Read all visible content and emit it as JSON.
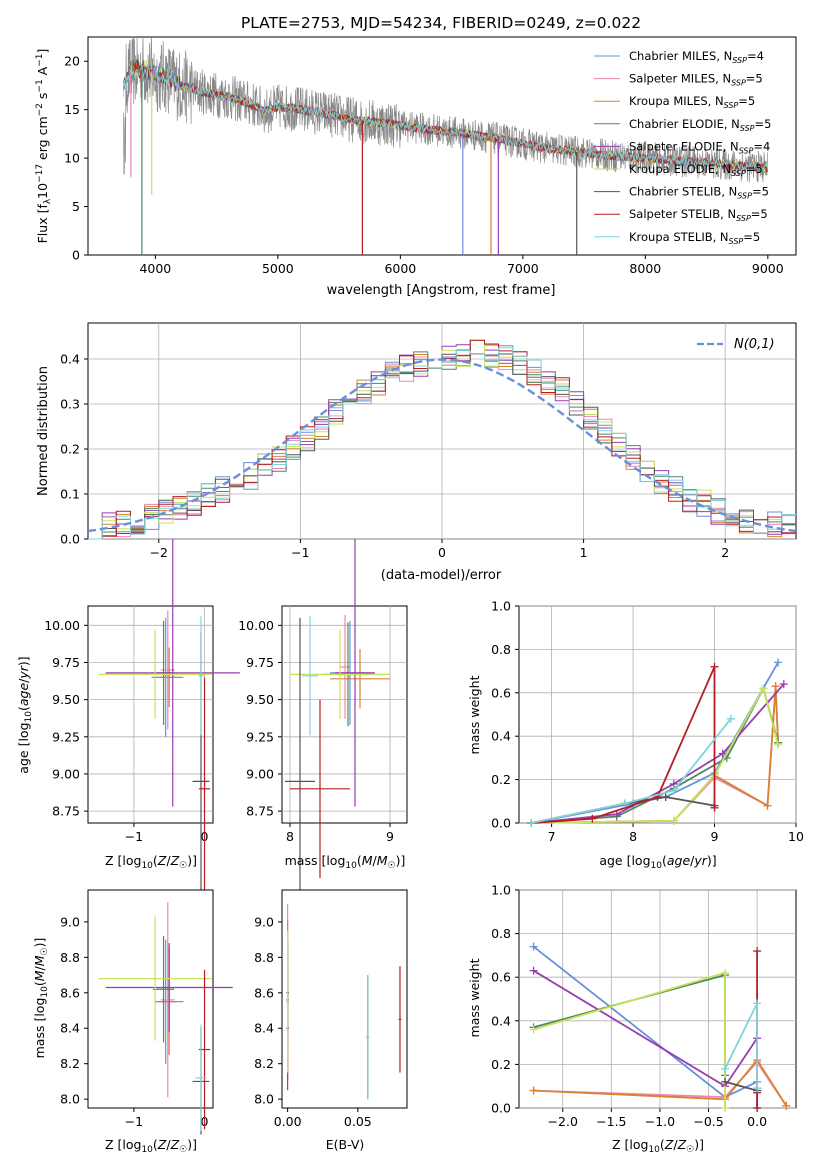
{
  "title": "PLATE=2753, MJD=54234, FIBERID=0249, z=0.022",
  "model_colors": [
    "#6a8fdc",
    "#ef84b2",
    "#d78431",
    "#4a8a61",
    "#9a3bb2",
    "#c7e35c",
    "#555555",
    "#b51d23",
    "#7fd5db"
  ],
  "chart_data": [
    {
      "id": "spectrum",
      "type": "line",
      "xlabel": "wavelength [Angstrom, rest frame]",
      "ylabel": "Flux [f_λ10^-17 erg cm^-2 s^-1 A^-1]",
      "xlim": [
        3450,
        9230
      ],
      "ylim": [
        0,
        22.5
      ],
      "xticks": [
        "4000",
        "5000",
        "6000",
        "7000",
        "8000",
        "9000"
      ],
      "yticks": [
        "0",
        "5",
        "10",
        "15",
        "20"
      ],
      "grid": false,
      "legend_position": "top-right",
      "legend": [
        {
          "label": "Chabrier MILES, N",
          "sub": "SSP",
          "value": "=4"
        },
        {
          "label": "Salpeter MILES, N",
          "sub": "SSP",
          "value": "=5"
        },
        {
          "label": "Kroupa MILES, N",
          "sub": "SSP",
          "value": "=5"
        },
        {
          "label": "Chabrier ELODIE, N",
          "sub": "SSP",
          "value": "=5"
        },
        {
          "label": "Salpeter ELODIE, N",
          "sub": "SSP",
          "value": "=4"
        },
        {
          "label": "Kroupa ELODIE, N",
          "sub": "SSP",
          "value": "=5"
        },
        {
          "label": "Chabrier STELIB, N",
          "sub": "SSP",
          "value": "=5"
        },
        {
          "label": "Salpeter STELIB, N",
          "sub": "SSP",
          "value": "=5"
        },
        {
          "label": "Kroupa STELIB, N",
          "sub": "SSP",
          "value": "=5"
        }
      ],
      "data_continuum": {
        "wavelength": [
          3740,
          3800,
          3900,
          4000,
          4100,
          4200,
          4400,
          4600,
          4800,
          4900,
          5000,
          5200,
          5400,
          5600,
          5800,
          6000,
          6200,
          6400,
          6600,
          6800,
          7000,
          7200,
          7400,
          7600,
          7800,
          8000,
          8200,
          8400,
          8600,
          8800,
          9000
        ],
        "flux": [
          17.5,
          19.0,
          19.2,
          18.5,
          18.3,
          17.5,
          16.8,
          16.3,
          15.5,
          14.8,
          15.3,
          15.0,
          14.6,
          14.0,
          13.7,
          13.4,
          13.0,
          12.7,
          12.4,
          12.0,
          11.5,
          11.0,
          10.7,
          10.4,
          10.2,
          10.0,
          9.8,
          9.6,
          9.4,
          9.2,
          9.0
        ]
      },
      "noise_amplitude": 2.4,
      "dips": [
        {
          "wavelength": 3800,
          "flux": 8.0
        },
        {
          "wavelength": 3890,
          "flux": 0
        },
        {
          "wavelength": 3970,
          "flux": 6.2
        },
        {
          "wavelength": 5690,
          "flux": 0
        },
        {
          "wavelength": 6510,
          "flux": 0
        },
        {
          "wavelength": 6740,
          "flux": 0
        },
        {
          "wavelength": 6800,
          "flux": 0
        },
        {
          "wavelength": 7440,
          "flux": 0
        }
      ]
    },
    {
      "id": "residuals",
      "type": "histogram",
      "xlabel": "(data-model)/error",
      "ylabel": "Normed distribution",
      "xlim": [
        -2.5,
        2.5
      ],
      "ylim": [
        0,
        0.48
      ],
      "xticks": [
        "−2",
        "−1",
        "0",
        "1",
        "2"
      ],
      "yticks": [
        "0.0",
        "0.1",
        "0.2",
        "0.3",
        "0.4"
      ],
      "grid": true,
      "legend_position": "top-right",
      "legend_label": "N(0,1)",
      "bin_edges_start": -2.5,
      "bin_width": 0.1,
      "base_histogram": [
        0.025,
        0.03,
        0.035,
        0.04,
        0.05,
        0.06,
        0.07,
        0.08,
        0.095,
        0.11,
        0.12,
        0.14,
        0.16,
        0.18,
        0.2,
        0.22,
        0.25,
        0.28,
        0.31,
        0.33,
        0.35,
        0.37,
        0.38,
        0.39,
        0.4,
        0.4,
        0.41,
        0.42,
        0.41,
        0.4,
        0.39,
        0.37,
        0.35,
        0.33,
        0.3,
        0.27,
        0.24,
        0.21,
        0.18,
        0.15,
        0.13,
        0.11,
        0.09,
        0.08,
        0.06,
        0.05,
        0.04,
        0.035,
        0.03,
        0.025
      ]
    },
    {
      "id": "age_vs_Z",
      "type": "errorbar",
      "xlabel": "Z [log10(Z/Z☉)]",
      "ylabel": "age  [log10(age/yr)]",
      "xlim": [
        -1.65,
        0.12
      ],
      "ylim": [
        8.67,
        10.13
      ],
      "xticks": [
        "−1",
        "0"
      ],
      "yticks": [
        "8.75",
        "9.00",
        "9.25",
        "9.50",
        "9.75",
        "10.00"
      ],
      "grid": true
    },
    {
      "id": "age_vs_mass",
      "type": "errorbar",
      "xlabel": "mass [log10(M/M☉)]",
      "ylabel": "",
      "xlim": [
        7.92,
        9.17
      ],
      "ylim": [
        8.67,
        10.13
      ],
      "xticks": [
        "8",
        "9"
      ],
      "yticks": [
        "8.75",
        "9.00",
        "9.25",
        "9.50",
        "9.75",
        "10.00"
      ],
      "grid": true
    },
    {
      "id": "weight_vs_age",
      "type": "line",
      "xlabel": "age  [log10(age/yr)]",
      "ylabel": "mass weight",
      "xlim": [
        6.6,
        10
      ],
      "ylim": [
        0,
        1
      ],
      "xticks": [
        "7",
        "8",
        "9",
        "10"
      ],
      "yticks": [
        "0.0",
        "0.2",
        "0.4",
        "0.6",
        "0.8",
        "1.0"
      ],
      "grid": true,
      "series": [
        {
          "x": [
            6.75,
            8.0,
            8.4,
            9.0,
            9.78
          ],
          "y": [
            0.0,
            0.09,
            0.12,
            0.23,
            0.74
          ]
        },
        {
          "x": [
            6.75,
            8.5,
            9.0,
            9.65,
            9.75,
            9.78
          ],
          "y": [
            0.0,
            0.01,
            0.21,
            0.08,
            0.63,
            0.37
          ]
        },
        {
          "x": [
            6.75,
            8.5,
            9.0,
            9.65,
            9.75,
            9.78
          ],
          "y": [
            0.0,
            0.01,
            0.22,
            0.08,
            0.63,
            0.37
          ]
        },
        {
          "x": [
            6.75,
            7.8,
            8.5,
            9.15,
            9.6,
            9.78
          ],
          "y": [
            0.0,
            0.03,
            0.16,
            0.3,
            0.62,
            0.37
          ]
        },
        {
          "x": [
            6.75,
            7.8,
            8.5,
            9.1,
            9.85
          ],
          "y": [
            0.0,
            0.04,
            0.18,
            0.32,
            0.64
          ]
        },
        {
          "x": [
            6.75,
            8.5,
            9.0,
            9.6,
            9.78
          ],
          "y": [
            0.0,
            0.01,
            0.22,
            0.62,
            0.36
          ]
        },
        {
          "x": [
            6.75,
            7.9,
            8.4,
            9.0
          ],
          "y": [
            0.0,
            0.09,
            0.12,
            0.08
          ]
        },
        {
          "x": [
            6.75,
            7.5,
            8.3,
            9.0,
            9.0
          ],
          "y": [
            0.0,
            0.02,
            0.12,
            0.72,
            0.07
          ]
        },
        {
          "x": [
            6.75,
            7.9,
            8.5,
            9.2,
            9.2
          ],
          "y": [
            0.0,
            0.09,
            0.15,
            0.48,
            0.48
          ]
        }
      ]
    },
    {
      "id": "mass_vs_Z",
      "type": "errorbar",
      "xlabel": "Z [log10(Z/Z☉)]",
      "ylabel": "mass [log10(M/M☉)]",
      "xlim": [
        -1.65,
        0.12
      ],
      "ylim": [
        7.95,
        9.18
      ],
      "xticks": [
        "−1",
        "0"
      ],
      "yticks": [
        "8.0",
        "8.2",
        "8.4",
        "8.6",
        "8.8",
        "9.0"
      ],
      "grid": false
    },
    {
      "id": "mass_vs_ebv",
      "type": "errorbar",
      "xlabel": "E(B-V)",
      "ylabel": "",
      "xlim": [
        -0.004,
        0.085
      ],
      "ylim": [
        7.95,
        9.18
      ],
      "xticks": [
        "0.00",
        "0.05"
      ],
      "yticks": [
        "8.0",
        "8.2",
        "8.4",
        "8.6",
        "8.8",
        "9.0"
      ],
      "grid": false
    },
    {
      "id": "weight_vs_Z",
      "type": "line",
      "xlabel": "Z [log10(Z/Z☉)]",
      "ylabel": "mass weight",
      "xlim": [
        -2.45,
        0.4
      ],
      "ylim": [
        0,
        1
      ],
      "xticks": [
        "−2.0",
        "−1.5",
        "−1.0",
        "−0.5",
        "0.0"
      ],
      "yticks": [
        "0.0",
        "0.2",
        "0.4",
        "0.6",
        "0.8",
        "1.0"
      ],
      "grid": true,
      "series": [
        {
          "x": [
            -2.3,
            -0.33,
            0.0,
            0.0
          ],
          "y": [
            0.74,
            0.05,
            0.12,
            0.0
          ]
        },
        {
          "x": [
            -2.3,
            -0.33,
            0.0,
            0.3
          ],
          "y": [
            0.08,
            0.05,
            0.21,
            0.01
          ]
        },
        {
          "x": [
            -2.3,
            -0.33,
            0.0,
            0.3
          ],
          "y": [
            0.08,
            0.04,
            0.22,
            0.01
          ]
        },
        {
          "x": [
            -2.3,
            -0.33,
            -0.33
          ],
          "y": [
            0.37,
            0.61,
            0.15
          ]
        },
        {
          "x": [
            -2.3,
            -0.33,
            0.0
          ],
          "y": [
            0.63,
            0.1,
            0.32
          ]
        },
        {
          "x": [
            -2.3,
            -0.33,
            -0.33
          ],
          "y": [
            0.36,
            0.62,
            0.0
          ]
        },
        {
          "x": [
            -0.33,
            0.0,
            0.0
          ],
          "y": [
            0.12,
            0.08,
            0.09
          ]
        },
        {
          "x": [
            0.0,
            0.0,
            0.0
          ],
          "y": [
            0.72,
            0.07,
            0.0
          ]
        },
        {
          "x": [
            -0.33,
            0.0,
            0.0
          ],
          "y": [
            0.18,
            0.48,
            0.09
          ]
        }
      ]
    }
  ]
}
